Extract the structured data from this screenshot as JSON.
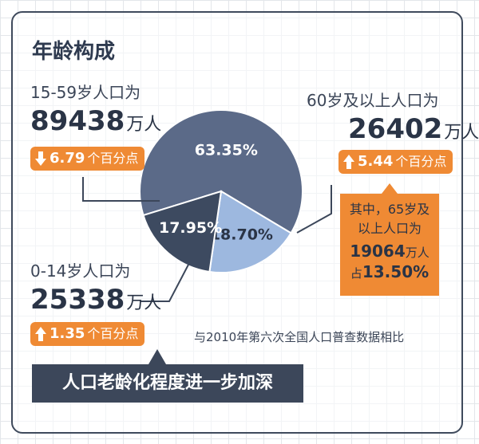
{
  "title": "年龄构成",
  "chart_data": {
    "type": "pie",
    "slices": [
      {
        "label": "15-59岁人口为",
        "value": 63.35,
        "display": "63.35%",
        "color": "#5b6a88"
      },
      {
        "label": "60岁及以上人口为",
        "value": 18.7,
        "display": "18.70%",
        "color": "#9db8df"
      },
      {
        "label": "0-14岁人口为",
        "value": 17.95,
        "display": "17.95%",
        "color": "#3d4a60"
      }
    ]
  },
  "groups": {
    "working": {
      "label": "15-59岁人口为",
      "population": "89438",
      "unit": "万人",
      "change": "6.79",
      "change_text": "个百分点",
      "direction": "down"
    },
    "elderly": {
      "label": "60岁及以上人口为",
      "population": "26402",
      "unit": "万人",
      "change": "5.44",
      "change_text": "个百分点",
      "direction": "up"
    },
    "children": {
      "label": "0-14岁人口为",
      "population": "25338",
      "unit": "万人",
      "change": "1.35",
      "change_text": "个百分点",
      "direction": "up"
    }
  },
  "callout": {
    "line1": "其中，65岁及",
    "line2": "以上人口为",
    "number": "19064",
    "unit": "万人",
    "share_prefix": "占",
    "share": "13.50%"
  },
  "note": "与2010年第六次全国人口普查数据相比",
  "banner": "人口老龄化程度进一步加深",
  "colors": {
    "accent_orange": "#ef8a34",
    "dark_navy": "#3c475a",
    "slate": "#5b6a88",
    "light_blue": "#9db8df"
  }
}
